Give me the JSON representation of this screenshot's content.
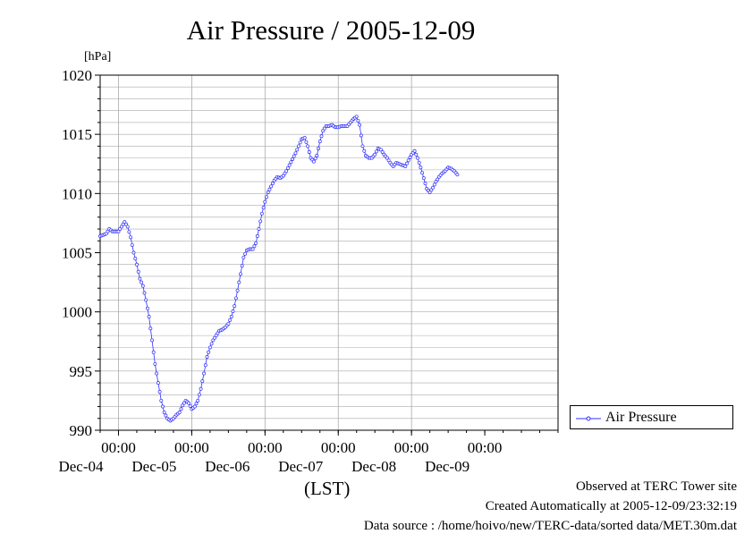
{
  "title": "Air Pressure / 2005-12-09",
  "unit": "[hPa]",
  "x_axis_title": "(LST)",
  "footer": {
    "observed": "Observed at TERC Tower site",
    "created": "Created Automatically at 2005-12-09/23:32:19",
    "source": "Data source : /home/hoivo/new/TERC-data/sorted  data/MET.30m.dat"
  },
  "legend": {
    "label": "Air Pressure"
  },
  "colors": {
    "series": "#3030ff",
    "grid": "#aaaaaa",
    "axis": "#000000"
  },
  "chart_data": {
    "type": "line",
    "title": "Air Pressure / 2005-12-09",
    "ylabel": "[hPa]",
    "xlabel": "(LST)",
    "ylim": [
      990,
      1020
    ],
    "xlim": [
      "2005-12-03 18:00",
      "2005-12-09 24:00"
    ],
    "y_ticks": [
      "1020",
      "1015",
      "1010",
      "1005",
      "1000",
      "995",
      "990"
    ],
    "x_ticks": [
      {
        "time": "00:00",
        "date": "Dec-04"
      },
      {
        "time": "00:00",
        "date": "Dec-05"
      },
      {
        "time": "00:00",
        "date": "Dec-06"
      },
      {
        "time": "00:00",
        "date": "Dec-07"
      },
      {
        "time": "00:00",
        "date": "Dec-08"
      },
      {
        "time": "00:00",
        "date": "Dec-09"
      }
    ],
    "grid": true,
    "legend_position": "right",
    "series": [
      {
        "name": "Air Pressure",
        "x_units": "hours since 2005-12-03 18:00",
        "points": [
          [
            0,
            1006.4
          ],
          [
            2,
            1006.6
          ],
          [
            3,
            1007.0
          ],
          [
            4,
            1006.8
          ],
          [
            6,
            1006.8
          ],
          [
            7,
            1007.2
          ],
          [
            8,
            1007.6
          ],
          [
            9,
            1007.2
          ],
          [
            10,
            1006.3
          ],
          [
            11,
            1005.0
          ],
          [
            12,
            1004.0
          ],
          [
            13,
            1002.8
          ],
          [
            14,
            1002.2
          ],
          [
            15,
            1001.0
          ],
          [
            16,
            999.6
          ],
          [
            17,
            997.6
          ],
          [
            18,
            995.6
          ],
          [
            19,
            994.0
          ],
          [
            20,
            992.5
          ],
          [
            21,
            991.5
          ],
          [
            22,
            991.0
          ],
          [
            23,
            990.8
          ],
          [
            24,
            991.0
          ],
          [
            25,
            991.3
          ],
          [
            26,
            991.5
          ],
          [
            27,
            992.1
          ],
          [
            28,
            992.5
          ],
          [
            29,
            992.3
          ],
          [
            30,
            991.8
          ],
          [
            31,
            992.0
          ],
          [
            32,
            992.5
          ],
          [
            33,
            993.5
          ],
          [
            34,
            994.8
          ],
          [
            35,
            996.2
          ],
          [
            36,
            997.0
          ],
          [
            37,
            997.6
          ],
          [
            38,
            998.0
          ],
          [
            39,
            998.4
          ],
          [
            40,
            998.5
          ],
          [
            41,
            998.7
          ],
          [
            42,
            999.0
          ],
          [
            43,
            999.6
          ],
          [
            44,
            1000.5
          ],
          [
            45,
            1001.8
          ],
          [
            46,
            1003.2
          ],
          [
            47,
            1004.6
          ],
          [
            48,
            1005.2
          ],
          [
            49,
            1005.3
          ],
          [
            50,
            1005.3
          ],
          [
            51,
            1005.8
          ],
          [
            52,
            1007.0
          ],
          [
            53,
            1008.3
          ],
          [
            54,
            1009.3
          ],
          [
            55,
            1010.1
          ],
          [
            56,
            1010.6
          ],
          [
            57,
            1011.1
          ],
          [
            58,
            1011.4
          ],
          [
            59,
            1011.3
          ],
          [
            60,
            1011.5
          ],
          [
            61,
            1011.9
          ],
          [
            62,
            1012.4
          ],
          [
            63,
            1012.9
          ],
          [
            64,
            1013.4
          ],
          [
            65,
            1014.0
          ],
          [
            66,
            1014.6
          ],
          [
            67,
            1014.7
          ],
          [
            68,
            1014.0
          ],
          [
            69,
            1013.0
          ],
          [
            70,
            1012.7
          ],
          [
            71,
            1013.2
          ],
          [
            72,
            1014.4
          ],
          [
            73,
            1015.3
          ],
          [
            74,
            1015.7
          ],
          [
            75,
            1015.7
          ],
          [
            76,
            1015.8
          ],
          [
            77,
            1015.6
          ],
          [
            78,
            1015.6
          ],
          [
            79,
            1015.7
          ],
          [
            80,
            1015.7
          ],
          [
            81,
            1015.7
          ],
          [
            82,
            1016.0
          ],
          [
            83,
            1016.3
          ],
          [
            84,
            1016.5
          ],
          [
            85,
            1015.8
          ],
          [
            86,
            1014.0
          ],
          [
            87,
            1013.2
          ],
          [
            88,
            1013.0
          ],
          [
            89,
            1013.0
          ],
          [
            90,
            1013.3
          ],
          [
            91,
            1013.8
          ],
          [
            92,
            1013.7
          ],
          [
            93,
            1013.3
          ],
          [
            94,
            1013.0
          ],
          [
            95,
            1012.6
          ],
          [
            96,
            1012.3
          ],
          [
            97,
            1012.6
          ],
          [
            98,
            1012.5
          ],
          [
            99,
            1012.4
          ],
          [
            100,
            1012.3
          ],
          [
            101,
            1012.8
          ],
          [
            102,
            1013.3
          ],
          [
            103,
            1013.6
          ],
          [
            104,
            1013.0
          ],
          [
            105,
            1012.2
          ],
          [
            106,
            1011.3
          ],
          [
            107,
            1010.4
          ],
          [
            108,
            1010.1
          ],
          [
            109,
            1010.5
          ],
          [
            110,
            1011.0
          ],
          [
            111,
            1011.4
          ],
          [
            112,
            1011.7
          ],
          [
            113,
            1011.9
          ],
          [
            114,
            1012.2
          ],
          [
            115,
            1012.1
          ],
          [
            116,
            1011.9
          ],
          [
            117,
            1011.6
          ]
        ]
      }
    ]
  }
}
